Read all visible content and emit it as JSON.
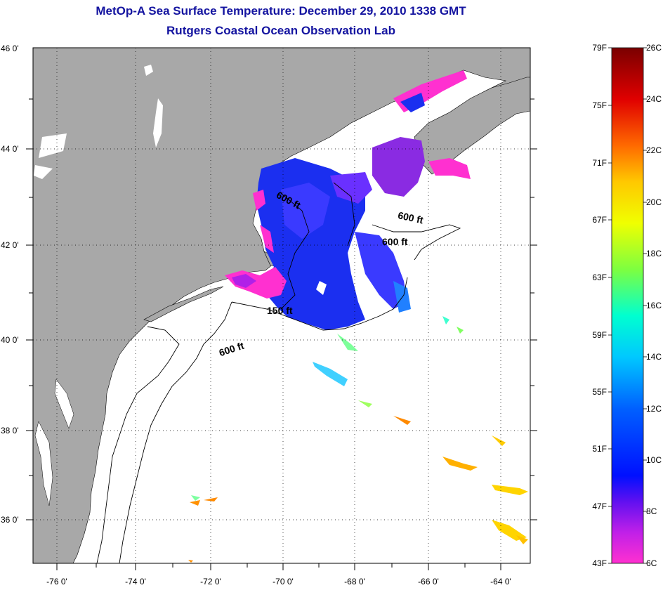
{
  "title": {
    "line1": "MetOp-A Sea Surface Temperature:  December 29, 2010 1338 GMT",
    "line2": "Rutgers Coastal Ocean Observation Lab"
  },
  "map": {
    "lon_range": [
      -77,
      -63
    ],
    "lat_range": [
      35,
      46
    ],
    "lon_ticks": [
      "-76 0'",
      "-74 0'",
      "-72 0'",
      "-70 0'",
      "-68 0'",
      "-66 0'",
      "-64 0'"
    ],
    "lat_ticks": [
      "46 0'",
      "44 0'",
      "42 0'",
      "40 0'",
      "38 0'",
      "36 0'"
    ],
    "land_color": "#a8a8a8",
    "grid": "dotted",
    "contour_labels": [
      "600 ft",
      "600 ft",
      "600 ft",
      "150 ft",
      "600 ft"
    ]
  },
  "colorbar": {
    "fahrenheit_labels": [
      "79F",
      "75F",
      "71F",
      "67F",
      "63F",
      "59F",
      "55F",
      "51F",
      "47F",
      "43F"
    ],
    "celsius_labels": [
      "26C",
      "24C",
      "22C",
      "20C",
      "18C",
      "16C",
      "14C",
      "12C",
      "10C",
      "8C",
      "6C"
    ],
    "colors_top_to_bottom": [
      "#7a0000",
      "#e00000",
      "#ff6a00",
      "#ffc800",
      "#f0ff00",
      "#7dff40",
      "#00ffc8",
      "#00a0ff",
      "#0010ff",
      "#8020e0",
      "#ff30d0"
    ]
  }
}
